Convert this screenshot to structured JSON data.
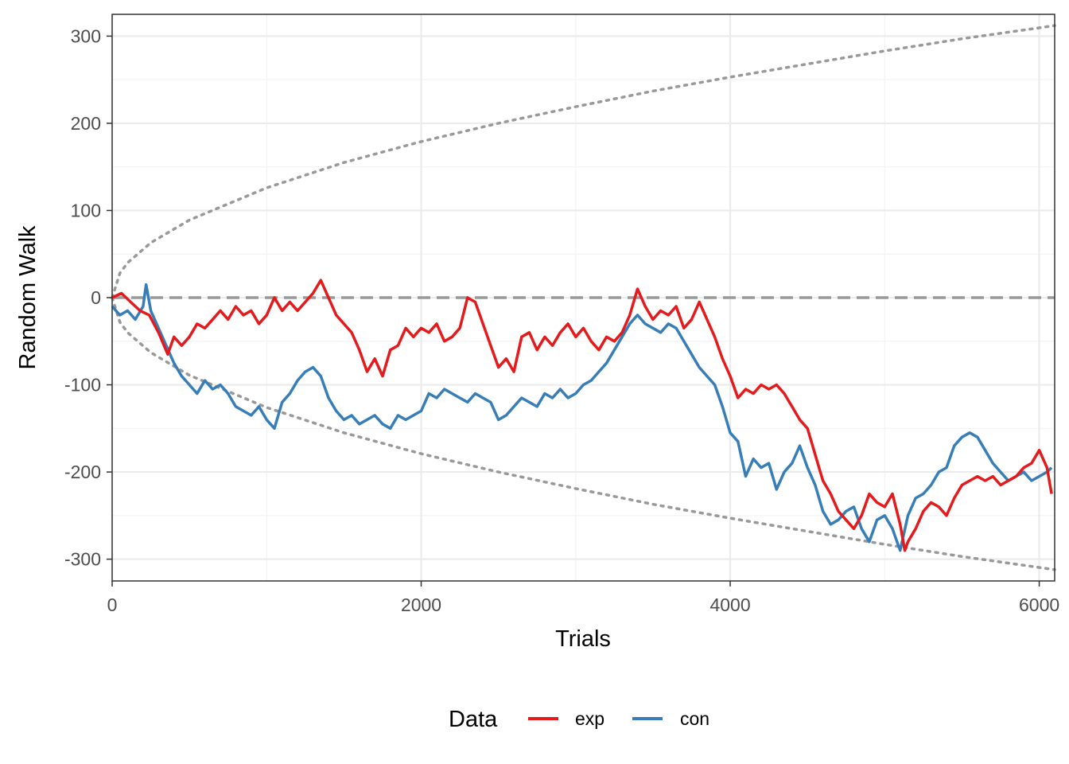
{
  "chart_data": {
    "type": "line",
    "xlabel": "Trials",
    "ylabel": "Random Walk",
    "xlim": [
      0,
      6100
    ],
    "ylim": [
      -325,
      325
    ],
    "x_ticks": [
      0,
      2000,
      4000,
      6000
    ],
    "x_tick_labels": [
      "0",
      "2000",
      "4000",
      "6000"
    ],
    "y_ticks": [
      300,
      200,
      100,
      0,
      -100,
      -200,
      -300
    ],
    "y_tick_labels": [
      "300",
      "200",
      "100",
      "0",
      "-100",
      "-200",
      "-300"
    ],
    "grid": true,
    "legend": {
      "title": "Data",
      "position": "bottom"
    },
    "series": [
      {
        "name": "exp",
        "color": "#E41A1C",
        "points": [
          [
            0,
            0
          ],
          [
            60,
            5
          ],
          [
            120,
            -5
          ],
          [
            180,
            -15
          ],
          [
            240,
            -20
          ],
          [
            300,
            -40
          ],
          [
            360,
            -65
          ],
          [
            400,
            -45
          ],
          [
            450,
            -55
          ],
          [
            500,
            -45
          ],
          [
            550,
            -30
          ],
          [
            600,
            -35
          ],
          [
            650,
            -25
          ],
          [
            700,
            -15
          ],
          [
            750,
            -25
          ],
          [
            800,
            -10
          ],
          [
            850,
            -20
          ],
          [
            900,
            -15
          ],
          [
            950,
            -30
          ],
          [
            1000,
            -20
          ],
          [
            1050,
            0
          ],
          [
            1100,
            -15
          ],
          [
            1150,
            -5
          ],
          [
            1200,
            -15
          ],
          [
            1250,
            -5
          ],
          [
            1300,
            5
          ],
          [
            1350,
            20
          ],
          [
            1400,
            0
          ],
          [
            1450,
            -20
          ],
          [
            1500,
            -30
          ],
          [
            1550,
            -40
          ],
          [
            1600,
            -60
          ],
          [
            1650,
            -85
          ],
          [
            1700,
            -70
          ],
          [
            1750,
            -90
          ],
          [
            1800,
            -60
          ],
          [
            1850,
            -55
          ],
          [
            1900,
            -35
          ],
          [
            1950,
            -45
          ],
          [
            2000,
            -35
          ],
          [
            2050,
            -40
          ],
          [
            2100,
            -30
          ],
          [
            2150,
            -50
          ],
          [
            2200,
            -45
          ],
          [
            2250,
            -35
          ],
          [
            2300,
            0
          ],
          [
            2350,
            -5
          ],
          [
            2400,
            -30
          ],
          [
            2450,
            -55
          ],
          [
            2500,
            -80
          ],
          [
            2550,
            -70
          ],
          [
            2600,
            -85
          ],
          [
            2650,
            -45
          ],
          [
            2700,
            -40
          ],
          [
            2750,
            -60
          ],
          [
            2800,
            -45
          ],
          [
            2850,
            -55
          ],
          [
            2900,
            -40
          ],
          [
            2950,
            -30
          ],
          [
            3000,
            -45
          ],
          [
            3050,
            -35
          ],
          [
            3100,
            -50
          ],
          [
            3150,
            -60
          ],
          [
            3200,
            -45
          ],
          [
            3250,
            -50
          ],
          [
            3300,
            -40
          ],
          [
            3350,
            -20
          ],
          [
            3400,
            10
          ],
          [
            3450,
            -10
          ],
          [
            3500,
            -25
          ],
          [
            3550,
            -15
          ],
          [
            3600,
            -20
          ],
          [
            3650,
            -10
          ],
          [
            3700,
            -35
          ],
          [
            3750,
            -25
          ],
          [
            3800,
            -5
          ],
          [
            3850,
            -25
          ],
          [
            3900,
            -45
          ],
          [
            3950,
            -70
          ],
          [
            4000,
            -90
          ],
          [
            4050,
            -115
          ],
          [
            4100,
            -105
          ],
          [
            4150,
            -110
          ],
          [
            4200,
            -100
          ],
          [
            4250,
            -105
          ],
          [
            4300,
            -100
          ],
          [
            4350,
            -110
          ],
          [
            4400,
            -125
          ],
          [
            4450,
            -140
          ],
          [
            4500,
            -150
          ],
          [
            4550,
            -180
          ],
          [
            4600,
            -210
          ],
          [
            4650,
            -225
          ],
          [
            4700,
            -245
          ],
          [
            4750,
            -255
          ],
          [
            4800,
            -265
          ],
          [
            4850,
            -250
          ],
          [
            4900,
            -225
          ],
          [
            4950,
            -235
          ],
          [
            5000,
            -240
          ],
          [
            5050,
            -225
          ],
          [
            5100,
            -260
          ],
          [
            5130,
            -290
          ],
          [
            5150,
            -280
          ],
          [
            5200,
            -265
          ],
          [
            5250,
            -245
          ],
          [
            5300,
            -235
          ],
          [
            5350,
            -240
          ],
          [
            5400,
            -250
          ],
          [
            5450,
            -230
          ],
          [
            5500,
            -215
          ],
          [
            5550,
            -210
          ],
          [
            5600,
            -205
          ],
          [
            5650,
            -210
          ],
          [
            5700,
            -205
          ],
          [
            5750,
            -215
          ],
          [
            5800,
            -210
          ],
          [
            5850,
            -205
          ],
          [
            5900,
            -195
          ],
          [
            5950,
            -190
          ],
          [
            6000,
            -175
          ],
          [
            6050,
            -195
          ],
          [
            6080,
            -225
          ]
        ]
      },
      {
        "name": "con",
        "color": "#377EB8",
        "points": [
          [
            0,
            -10
          ],
          [
            50,
            -20
          ],
          [
            100,
            -15
          ],
          [
            150,
            -25
          ],
          [
            200,
            -10
          ],
          [
            220,
            15
          ],
          [
            250,
            -15
          ],
          [
            300,
            -35
          ],
          [
            350,
            -55
          ],
          [
            400,
            -75
          ],
          [
            450,
            -90
          ],
          [
            500,
            -100
          ],
          [
            550,
            -110
          ],
          [
            600,
            -95
          ],
          [
            650,
            -105
          ],
          [
            700,
            -100
          ],
          [
            750,
            -110
          ],
          [
            800,
            -125
          ],
          [
            850,
            -130
          ],
          [
            900,
            -135
          ],
          [
            950,
            -125
          ],
          [
            1000,
            -140
          ],
          [
            1050,
            -150
          ],
          [
            1100,
            -120
          ],
          [
            1150,
            -110
          ],
          [
            1200,
            -95
          ],
          [
            1250,
            -85
          ],
          [
            1300,
            -80
          ],
          [
            1350,
            -90
          ],
          [
            1400,
            -115
          ],
          [
            1450,
            -130
          ],
          [
            1500,
            -140
          ],
          [
            1550,
            -135
          ],
          [
            1600,
            -145
          ],
          [
            1650,
            -140
          ],
          [
            1700,
            -135
          ],
          [
            1750,
            -145
          ],
          [
            1800,
            -150
          ],
          [
            1850,
            -135
          ],
          [
            1900,
            -140
          ],
          [
            1950,
            -135
          ],
          [
            2000,
            -130
          ],
          [
            2050,
            -110
          ],
          [
            2100,
            -115
          ],
          [
            2150,
            -105
          ],
          [
            2200,
            -110
          ],
          [
            2250,
            -115
          ],
          [
            2300,
            -120
          ],
          [
            2350,
            -110
          ],
          [
            2400,
            -115
          ],
          [
            2450,
            -120
          ],
          [
            2500,
            -140
          ],
          [
            2550,
            -135
          ],
          [
            2600,
            -125
          ],
          [
            2650,
            -115
          ],
          [
            2700,
            -120
          ],
          [
            2750,
            -125
          ],
          [
            2800,
            -110
          ],
          [
            2850,
            -115
          ],
          [
            2900,
            -105
          ],
          [
            2950,
            -115
          ],
          [
            3000,
            -110
          ],
          [
            3050,
            -100
          ],
          [
            3100,
            -95
          ],
          [
            3150,
            -85
          ],
          [
            3200,
            -75
          ],
          [
            3250,
            -60
          ],
          [
            3300,
            -45
          ],
          [
            3350,
            -30
          ],
          [
            3400,
            -20
          ],
          [
            3450,
            -30
          ],
          [
            3500,
            -35
          ],
          [
            3550,
            -40
          ],
          [
            3600,
            -30
          ],
          [
            3650,
            -35
          ],
          [
            3700,
            -50
          ],
          [
            3750,
            -65
          ],
          [
            3800,
            -80
          ],
          [
            3850,
            -90
          ],
          [
            3900,
            -100
          ],
          [
            3950,
            -125
          ],
          [
            4000,
            -155
          ],
          [
            4050,
            -165
          ],
          [
            4100,
            -205
          ],
          [
            4150,
            -185
          ],
          [
            4200,
            -195
          ],
          [
            4250,
            -190
          ],
          [
            4300,
            -220
          ],
          [
            4350,
            -200
          ],
          [
            4400,
            -190
          ],
          [
            4450,
            -170
          ],
          [
            4500,
            -195
          ],
          [
            4550,
            -215
          ],
          [
            4600,
            -245
          ],
          [
            4650,
            -260
          ],
          [
            4700,
            -255
          ],
          [
            4750,
            -245
          ],
          [
            4800,
            -240
          ],
          [
            4850,
            -265
          ],
          [
            4900,
            -280
          ],
          [
            4950,
            -255
          ],
          [
            5000,
            -250
          ],
          [
            5050,
            -265
          ],
          [
            5100,
            -290
          ],
          [
            5150,
            -250
          ],
          [
            5200,
            -230
          ],
          [
            5250,
            -225
          ],
          [
            5300,
            -215
          ],
          [
            5350,
            -200
          ],
          [
            5400,
            -195
          ],
          [
            5450,
            -170
          ],
          [
            5500,
            -160
          ],
          [
            5550,
            -155
          ],
          [
            5600,
            -160
          ],
          [
            5650,
            -175
          ],
          [
            5700,
            -190
          ],
          [
            5750,
            -200
          ],
          [
            5800,
            -210
          ],
          [
            5850,
            -205
          ],
          [
            5900,
            -200
          ],
          [
            5950,
            -210
          ],
          [
            6000,
            -205
          ],
          [
            6050,
            -200
          ],
          [
            6080,
            -195
          ]
        ]
      },
      {
        "name": "",
        "style": "dashed",
        "color": "#999999",
        "points": [
          [
            0,
            0
          ],
          [
            6100,
            0
          ]
        ]
      },
      {
        "name": "",
        "style": "dotted",
        "color": "#999999",
        "function": "y = +/- 4 * sqrt(x)",
        "points_upper": [
          [
            0,
            0
          ],
          [
            50,
            28
          ],
          [
            100,
            40
          ],
          [
            250,
            63
          ],
          [
            500,
            89
          ],
          [
            1000,
            126
          ],
          [
            1500,
            155
          ],
          [
            2000,
            179
          ],
          [
            2500,
            200
          ],
          [
            3000,
            219
          ],
          [
            3500,
            237
          ],
          [
            4000,
            253
          ],
          [
            4500,
            268
          ],
          [
            5000,
            283
          ],
          [
            5500,
            297
          ],
          [
            6100,
            312
          ]
        ],
        "points_lower": [
          [
            0,
            0
          ],
          [
            50,
            -28
          ],
          [
            100,
            -40
          ],
          [
            250,
            -63
          ],
          [
            500,
            -89
          ],
          [
            1000,
            -126
          ],
          [
            1500,
            -155
          ],
          [
            2000,
            -179
          ],
          [
            2500,
            -200
          ],
          [
            3000,
            -219
          ],
          [
            3500,
            -237
          ],
          [
            4000,
            -253
          ],
          [
            4500,
            -268
          ],
          [
            5000,
            -283
          ],
          [
            5500,
            -297
          ],
          [
            6100,
            -312
          ]
        ]
      }
    ]
  }
}
